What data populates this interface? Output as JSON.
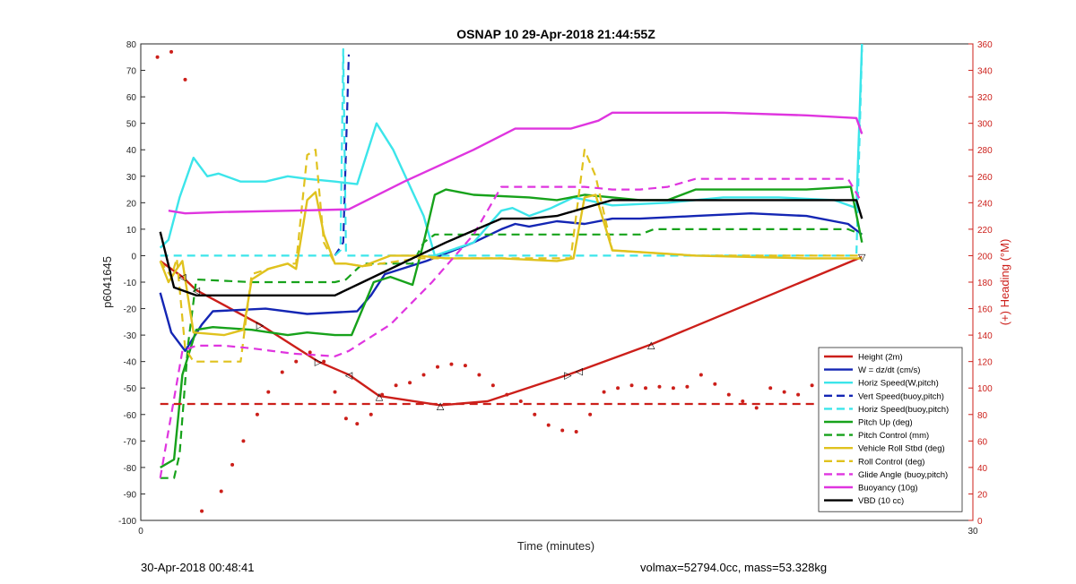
{
  "chart_data": {
    "type": "line",
    "title": "OSNAP 10 29-Apr-2018 21:44:55Z",
    "xlabel": "Time (minutes)",
    "ylabel": "p6041645",
    "y2label": "(+) Heading (°M)",
    "xlim": [
      0,
      30
    ],
    "ylim": [
      -100,
      80
    ],
    "y2lim": [
      0,
      360
    ],
    "xticks": [
      "0",
      "30"
    ],
    "yticks": [
      "80",
      "70",
      "60",
      "50",
      "40",
      "30",
      "20",
      "10",
      "0",
      "-10",
      "-20",
      "-30",
      "-40",
      "-50",
      "-60",
      "-70",
      "-80",
      "-90",
      "-100"
    ],
    "y2ticks": [
      "360",
      "340",
      "320",
      "300",
      "280",
      "260",
      "240",
      "220",
      "200",
      "180",
      "160",
      "140",
      "120",
      "100",
      "80",
      "60",
      "40",
      "20",
      "0"
    ],
    "grid": false,
    "legend_position": "bottom-right",
    "colors": {
      "red": "#cc1f1a",
      "blue": "#1426b4",
      "cyan": "#3ce5ea",
      "green": "#17a21b",
      "yellow": "#e0c21e",
      "magenta": "#df35df",
      "black": "#000000"
    },
    "series": [
      {
        "name": "Height (2m)",
        "color": "#cc1f1a",
        "style": "solid",
        "axis": "left",
        "x": [
          0.7,
          1.5,
          2.0,
          4.3,
          6.4,
          7.5,
          8.6,
          10.8,
          12.5,
          15.4,
          15.8,
          18.4,
          26.0
        ],
        "y": [
          -2,
          -8,
          -13,
          -26,
          -40,
          -45,
          -53,
          -56.5,
          -55,
          -45,
          -43.5,
          -33.5,
          -0.5
        ]
      },
      {
        "name": "W = dz/dt (cm/s)",
        "color": "#1426b4",
        "style": "solid",
        "axis": "left",
        "x": [
          0.7,
          1.1,
          1.6,
          2.2,
          2.6,
          4.5,
          6.0,
          7.8,
          8.3,
          8.8,
          10.3,
          10.8,
          12.0,
          13.0,
          13.5,
          14.0,
          15.0,
          16.0,
          17.0,
          18.0,
          20.0,
          22.0,
          24.0,
          25.5,
          26.0
        ],
        "y": [
          -14,
          -29,
          -36,
          -26,
          -21,
          -20,
          -22,
          -21,
          -15,
          -7,
          -2,
          0,
          5,
          10,
          12,
          11,
          13,
          12,
          14,
          14,
          15,
          16,
          15,
          12,
          8
        ]
      },
      {
        "name": "Horiz Speed(W,pitch)",
        "color": "#3ce5ea",
        "style": "solid",
        "axis": "left",
        "x": [
          0.7,
          1.0,
          1.4,
          1.9,
          2.4,
          2.8,
          3.6,
          4.5,
          5.3,
          6.0,
          7.0,
          7.8,
          8.5,
          9.1,
          10.2,
          10.6,
          12.0,
          13.0,
          13.4,
          14.0,
          14.8,
          15.6,
          17.0,
          19.0,
          21.0,
          23.0,
          25.0,
          25.8,
          26.0
        ],
        "y": [
          3,
          6,
          22,
          37,
          30,
          31,
          28,
          28,
          30,
          29,
          28,
          27,
          50,
          40,
          15,
          0,
          5,
          17,
          18,
          15,
          18,
          22,
          19,
          20,
          22,
          22,
          21,
          18,
          80
        ]
      },
      {
        "name": "Vert Speed(buoy,pitch)",
        "color": "#1426b4",
        "style": "dashed",
        "axis": "left",
        "x": [
          7.0,
          7.3,
          7.5
        ],
        "y": [
          0,
          5,
          76
        ]
      },
      {
        "name": "Horiz Speed(buoy,pitch)",
        "color": "#3ce5ea",
        "style": "dashed",
        "axis": "left",
        "x": [
          0.7,
          4.0,
          7.0,
          7.2,
          7.3,
          7.4,
          10.4,
          14.0,
          18.0,
          22.0,
          25.5,
          25.8,
          26.0
        ],
        "y": [
          0,
          0,
          0,
          2,
          78,
          0,
          0,
          0,
          0,
          0,
          0,
          0,
          78
        ]
      },
      {
        "name": "Pitch Up (deg)",
        "color": "#17a21b",
        "style": "solid",
        "axis": "left",
        "x": [
          0.7,
          1.2,
          1.5,
          2.0,
          2.6,
          4.0,
          5.3,
          6.0,
          7.0,
          7.6,
          8.4,
          9.0,
          9.8,
          10.2,
          10.6,
          11.0,
          12.0,
          14.0,
          15.0,
          16.0,
          17.0,
          18.0,
          19.0,
          20.0,
          22.0,
          24.0,
          25.6,
          26.0
        ],
        "y": [
          -80,
          -77,
          -45,
          -28,
          -27,
          -28,
          -30,
          -29,
          -30,
          -30,
          -10,
          -8,
          -11,
          5,
          23,
          25,
          23,
          22,
          21,
          23,
          22,
          21,
          21,
          25,
          25,
          25,
          26,
          5
        ]
      },
      {
        "name": "Pitch Control (mm)",
        "color": "#17a21b",
        "style": "dashed",
        "axis": "left",
        "x": [
          0.7,
          1.2,
          1.4,
          1.7,
          2.0,
          4.0,
          7.0,
          7.4,
          8.0,
          9.8,
          10.2,
          10.6,
          14.0,
          18.0,
          18.5,
          22.0,
          25.5,
          26.0
        ],
        "y": [
          -84,
          -84,
          -75,
          -34,
          -9,
          -10,
          -10,
          -9,
          -3,
          -3,
          5,
          8,
          8,
          8,
          10,
          10,
          10,
          8
        ]
      },
      {
        "name": "Vehicle Roll Stbd (deg)",
        "color": "#e0c21e",
        "style": "solid",
        "axis": "left",
        "x": [
          0.7,
          1.0,
          1.3,
          1.5,
          1.9,
          3.0,
          3.7,
          4.0,
          4.6,
          5.3,
          5.6,
          6.0,
          6.3,
          6.6,
          7.0,
          7.4,
          8.0,
          9.0,
          10.0,
          11.0,
          13.0,
          15.0,
          15.6,
          16.0,
          16.4,
          17.0,
          20.0,
          24.0,
          26.0
        ],
        "y": [
          -2,
          -10,
          -5,
          -2,
          -29,
          -30,
          -28,
          -9,
          -5,
          -3,
          -5,
          21,
          24,
          8,
          -3,
          -3,
          -4,
          0,
          0,
          -1,
          -1,
          -2,
          -1,
          22,
          23,
          2,
          0,
          -1,
          -1
        ]
      },
      {
        "name": "Roll Control (deg)",
        "color": "#e0c21e",
        "style": "dashed",
        "axis": "left",
        "x": [
          0.7,
          1.1,
          1.3,
          1.6,
          1.9,
          3.0,
          3.6,
          4.0,
          4.6,
          5.3,
          5.6,
          6.0,
          6.3,
          6.6,
          7.0,
          7.4,
          8.0,
          10.0,
          12.0,
          15.0,
          15.5,
          16.0,
          16.4,
          17.0,
          20.0,
          24.0,
          26.0
        ],
        "y": [
          -2,
          -8,
          -1,
          -35,
          -40,
          -40,
          -40,
          -7,
          -5,
          -3,
          -3,
          38,
          40,
          5,
          -3,
          -3,
          -4,
          -1,
          -1,
          -1,
          -1,
          40,
          30,
          2,
          0,
          0,
          0
        ]
      },
      {
        "name": "Glide Angle (buoy,pitch)",
        "color": "#df35df",
        "style": "dashed",
        "axis": "left",
        "x": [
          0.7,
          1.5,
          2.0,
          3.0,
          4.0,
          5.5,
          7.0,
          7.5,
          9.0,
          10.5,
          12.0,
          13.0,
          14.5,
          16.0,
          17.0,
          18.0,
          19.0,
          20.0,
          22.0,
          24.0,
          25.5,
          26.0
        ],
        "y": [
          -84,
          -36,
          -34,
          -34,
          -35,
          -37,
          -38,
          -36,
          -26,
          -10,
          8,
          26,
          26,
          26,
          25,
          25,
          26,
          29,
          29,
          29,
          29,
          20
        ]
      },
      {
        "name": "Buoyancy (10g)",
        "color": "#df35df",
        "style": "solid",
        "axis": "left",
        "x": [
          1.0,
          1.6,
          3.0,
          5.5,
          7.5,
          9.5,
          12.0,
          13.5,
          15.0,
          15.5,
          16.5,
          17.0,
          19.0,
          20.0,
          21.0,
          24.0,
          25.8,
          26.0
        ],
        "y": [
          17,
          16,
          16.5,
          17,
          17.5,
          28,
          40,
          48,
          48,
          48,
          51,
          54,
          54,
          54,
          54,
          53,
          52,
          46
        ]
      },
      {
        "name": "VBD (10 cc)",
        "color": "#000000",
        "style": "solid",
        "axis": "left",
        "x": [
          0.7,
          1.2,
          2.0,
          4.0,
          7.0,
          8.0,
          10.0,
          11.0,
          13.0,
          14.0,
          15.0,
          16.0,
          17.0,
          21.0,
          25.8,
          26.0
        ],
        "y": [
          9,
          -12,
          -15,
          -15,
          -15,
          -10,
          0,
          5,
          14,
          14,
          15,
          18,
          21,
          21,
          21,
          14
        ]
      },
      {
        "name": "",
        "color": "#cc1f1a",
        "style": "dashed",
        "axis": "left",
        "x": [
          0.7,
          26.0
        ],
        "y": [
          -56,
          -56
        ]
      },
      {
        "name": "",
        "color": "#cc1f1a",
        "style": "dots",
        "axis": "right",
        "x": [
          0.6,
          1.1,
          1.6,
          2.2,
          2.9,
          3.3,
          3.7,
          4.2,
          4.6,
          5.1,
          5.6,
          6.1,
          6.6,
          7.0,
          7.4,
          7.8,
          8.3,
          8.7,
          9.2,
          9.7,
          10.2,
          10.7,
          11.2,
          11.7,
          12.2,
          12.7,
          13.2,
          13.7,
          14.2,
          14.7,
          15.2,
          15.7,
          16.2,
          16.7,
          17.2,
          17.7,
          18.2,
          18.7,
          19.2,
          19.7,
          20.2,
          20.7,
          21.2,
          21.7,
          22.2,
          22.7,
          23.2,
          23.7,
          24.2,
          24.7,
          25.2,
          25.7,
          26.0
        ],
        "y": [
          350,
          354,
          333,
          7,
          22,
          42,
          60,
          80,
          97,
          112,
          120,
          127,
          120,
          97,
          77,
          73,
          80,
          95,
          102,
          104,
          110,
          116,
          118,
          117,
          110,
          102,
          95,
          90,
          80,
          72,
          68,
          67,
          80,
          97,
          100,
          102,
          100,
          101,
          100,
          101,
          110,
          103,
          95,
          90,
          85,
          100,
          97,
          95,
          102,
          108,
          98,
          90,
          100
        ]
      }
    ],
    "markers": [
      {
        "x": 1.5,
        "y": -8,
        "glyph": "◁"
      },
      {
        "x": 2.0,
        "y": -13,
        "glyph": "◁"
      },
      {
        "x": 4.3,
        "y": -26,
        "glyph": "▷"
      },
      {
        "x": 6.4,
        "y": -40,
        "glyph": "▷"
      },
      {
        "x": 7.5,
        "y": -45,
        "glyph": "◁"
      },
      {
        "x": 8.6,
        "y": -53,
        "glyph": "△"
      },
      {
        "x": 10.8,
        "y": -56.5,
        "glyph": "△"
      },
      {
        "x": 15.4,
        "y": -45,
        "glyph": "▷"
      },
      {
        "x": 15.8,
        "y": -43.5,
        "glyph": "◁"
      },
      {
        "x": 18.4,
        "y": -33.5,
        "glyph": "△"
      },
      {
        "x": 26.0,
        "y": -0.5,
        "glyph": "▽"
      }
    ]
  },
  "footer": {
    "left": "30-Apr-2018 00:48:41",
    "right": "volmax=52794.0cc, mass=53.328kg"
  }
}
